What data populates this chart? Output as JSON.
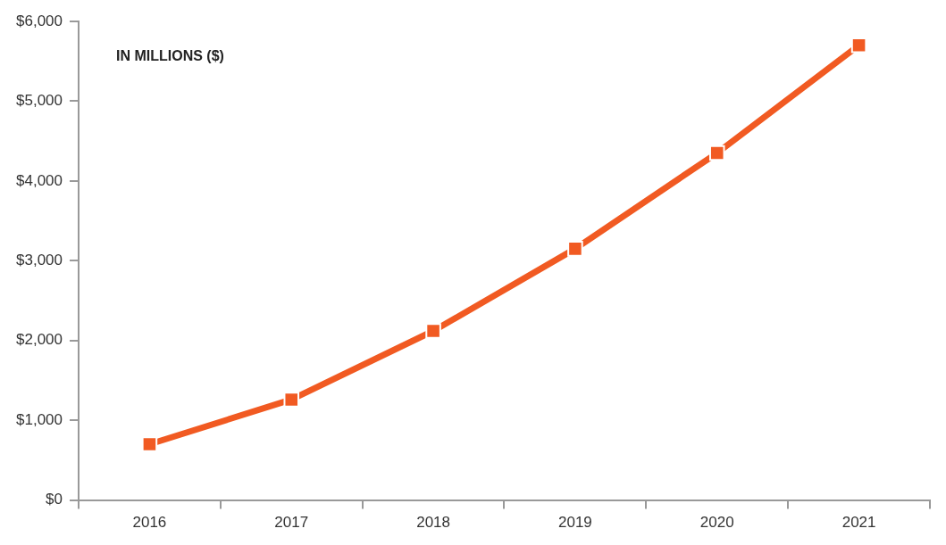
{
  "chart_data": {
    "type": "line",
    "annotations": [
      "IN MILLIONS ($)"
    ],
    "categories": [
      "2016",
      "2017",
      "2018",
      "2019",
      "2020",
      "2021"
    ],
    "series": [
      {
        "color": "#f15a22",
        "values": [
          700,
          1260,
          2120,
          3150,
          4350,
          5700
        ]
      }
    ],
    "ylim": [
      0,
      6000
    ],
    "yticks": [
      {
        "value": 0,
        "label": "$0"
      },
      {
        "value": 1000,
        "label": "$1,000"
      },
      {
        "value": 2000,
        "label": "$2,000"
      },
      {
        "value": 3000,
        "label": "$3,000"
      },
      {
        "value": 4000,
        "label": "$4,000"
      },
      {
        "value": 5000,
        "label": "$5,000"
      },
      {
        "value": 6000,
        "label": "$6,000"
      }
    ],
    "grid": false,
    "legend": false,
    "marker": "square",
    "line_style": "solid"
  }
}
